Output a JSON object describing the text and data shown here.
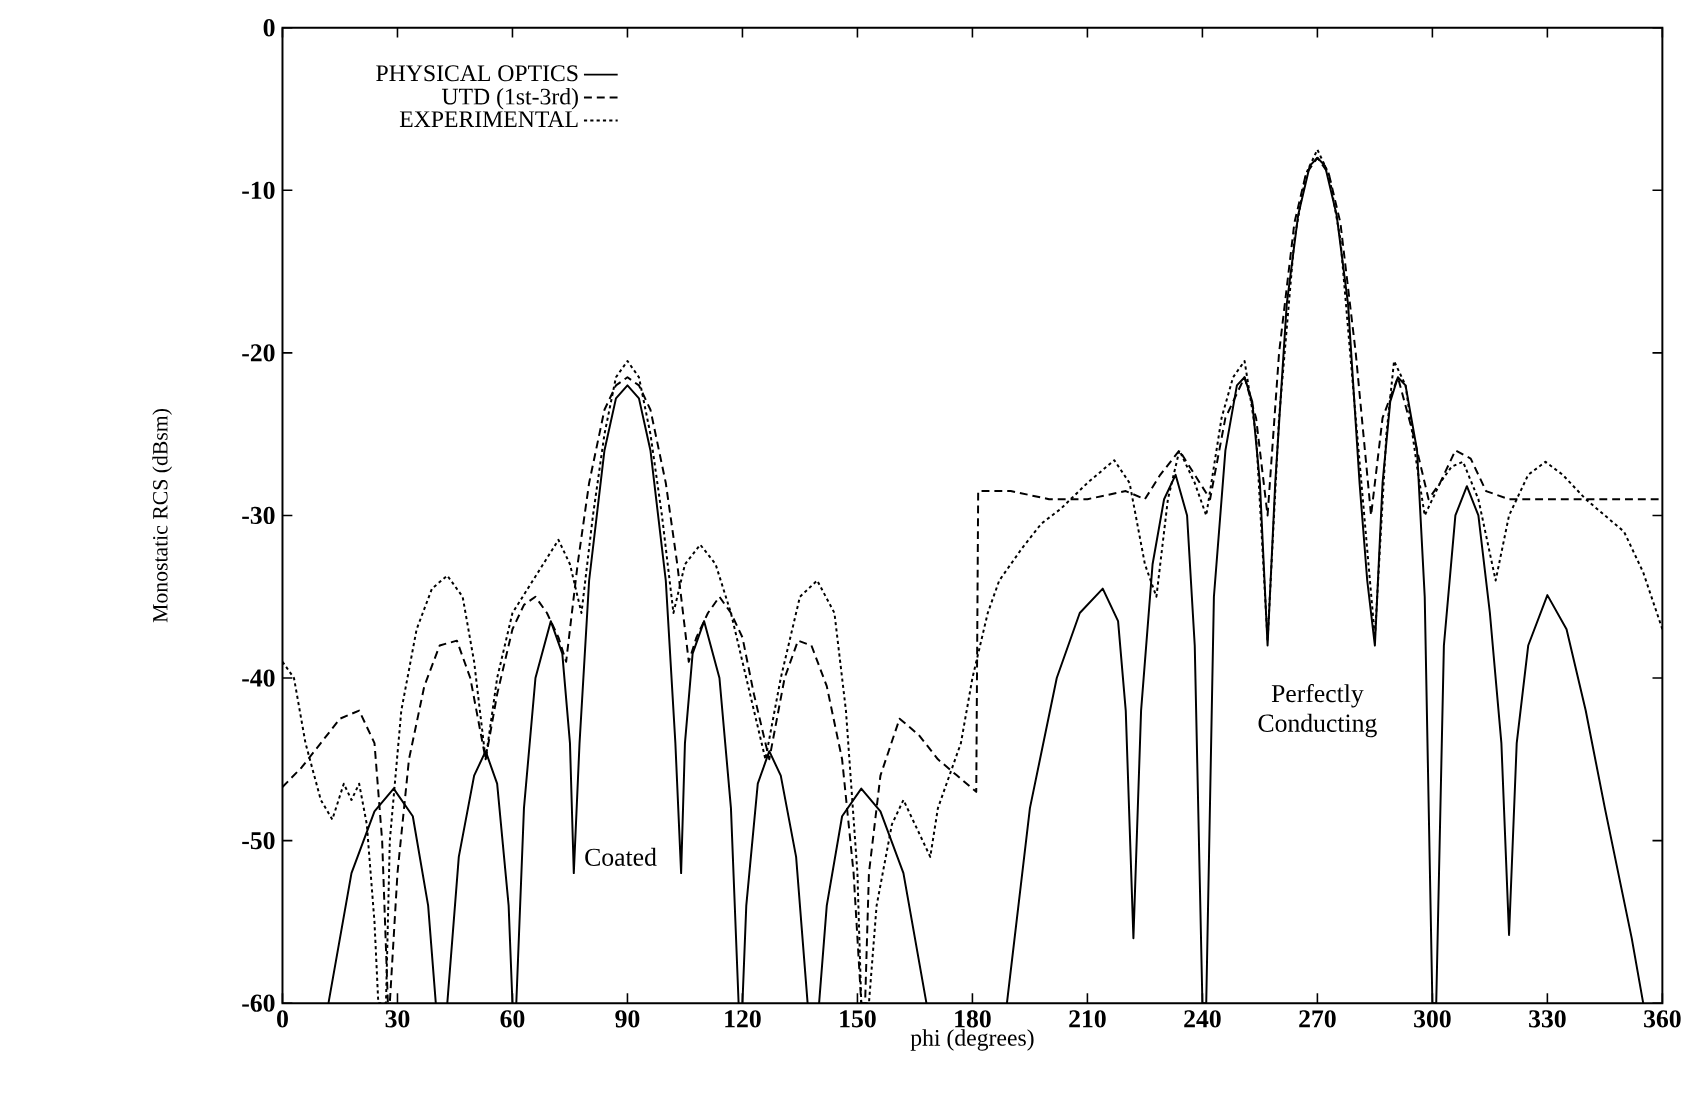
{
  "chart_data": {
    "type": "line",
    "xlabel": "phi (degrees)",
    "ylabel": "Monostatic RCS (dBsm)",
    "xlim": [
      0,
      360
    ],
    "ylim": [
      -60,
      0
    ],
    "xticks": [
      0,
      30,
      60,
      90,
      120,
      150,
      180,
      210,
      240,
      270,
      300,
      330,
      360
    ],
    "yticks": [
      -60,
      -50,
      -40,
      -30,
      -20,
      -10,
      0
    ],
    "legend": "top left",
    "series": [
      {
        "name": "PHYSICAL OPTICS",
        "color": "#000000",
        "line_style": "solid",
        "x": [
          12,
          18,
          24,
          29,
          34,
          38,
          40,
          41.5,
          43,
          46,
          50,
          53,
          56,
          59,
          60,
          60.5,
          61,
          63,
          66,
          70,
          73,
          75,
          76,
          77.5,
          80,
          84,
          87,
          90,
          93,
          96,
          100,
          102.5,
          104,
          105,
          107,
          110,
          114,
          117,
          119,
          119.5,
          120,
          121,
          124,
          127,
          130,
          134,
          137,
          138.5,
          140,
          142,
          146,
          151,
          156,
          162,
          168,
          178,
          189,
          195,
          202,
          208,
          214,
          218,
          220,
          222,
          224,
          227,
          230,
          233,
          236,
          238,
          240,
          241,
          243,
          246,
          249,
          251,
          253,
          255,
          257,
          259,
          262,
          265,
          268,
          270,
          272,
          275,
          278,
          281,
          283,
          285,
          287,
          289,
          291,
          293,
          296,
          298,
          300,
          301,
          303,
          306,
          309,
          312,
          315,
          318,
          320,
          322,
          325,
          330,
          335,
          340,
          345,
          352,
          355
        ],
        "values": [
          -60,
          -52,
          -48.2,
          -46.8,
          -48.5,
          -54,
          -60,
          null,
          -60,
          -51,
          -46,
          -44.5,
          -46.5,
          -54,
          -60,
          null,
          -60,
          -48,
          -40,
          -36.5,
          -38.5,
          -44,
          -52,
          -44,
          -34,
          -26,
          -22.8,
          -22,
          -22.8,
          -26,
          -34,
          -44,
          -52,
          -44,
          -38.5,
          -36.5,
          -40,
          -48,
          -60,
          null,
          -60,
          -54,
          -46.5,
          -44.5,
          -46,
          -51,
          -60,
          null,
          -60,
          -54,
          -48.5,
          -46.8,
          -48.2,
          -52,
          -60,
          null,
          -60,
          -48,
          -40,
          -36,
          -34.5,
          -36.5,
          -42,
          -56,
          -42,
          -33,
          -29,
          -27.5,
          -30,
          -38,
          -60,
          -60,
          -35,
          -26,
          -22,
          -21.5,
          -23,
          -28,
          -38,
          -28,
          -17,
          -11.5,
          -8.5,
          -8,
          -8.5,
          -11.5,
          -17,
          -28,
          -34,
          -38,
          -28,
          -23,
          -21.5,
          -22,
          -26,
          -35,
          -60,
          -60,
          -38,
          -30,
          -28.2,
          -30,
          -36,
          -44,
          -55.8,
          -44,
          -38,
          -34.9,
          -37,
          -42,
          -48,
          -56,
          -60
        ]
      },
      {
        "name": "UTD (1st-3rd)",
        "color": "#000000",
        "line_style": "dashed",
        "x": [
          0,
          5,
          10,
          15,
          20,
          24,
          26,
          27.5,
          28,
          30,
          33,
          37,
          41,
          45.5,
          49,
          53,
          56,
          60,
          63,
          66,
          69,
          72,
          74,
          77,
          80,
          84,
          87,
          90,
          93,
          96,
          100,
          103,
          106,
          108,
          111,
          114,
          117,
          120,
          123,
          127,
          131,
          134.5,
          138,
          142,
          146,
          149,
          151,
          152,
          153,
          156,
          161,
          166,
          171,
          176,
          181,
          181.5,
          190,
          200,
          210,
          220,
          225,
          229,
          234,
          238,
          242,
          246,
          251,
          254,
          257,
          260,
          264,
          267,
          270,
          273,
          276,
          280,
          284,
          287,
          291,
          295,
          299,
          302,
          306,
          310,
          314,
          320,
          330,
          340,
          350,
          360
        ],
        "values": [
          -46.7,
          -45.5,
          -44,
          -42.5,
          -42,
          -44,
          -50,
          -60,
          -60,
          -52,
          -45,
          -40.5,
          -38,
          -37.7,
          -40,
          -45,
          -41,
          -37,
          -35.5,
          -35,
          -36,
          -37.5,
          -39,
          -33,
          -28,
          -23.5,
          -22,
          -21.5,
          -22,
          -23.5,
          -28,
          -33,
          -39,
          -37.5,
          -36,
          -35,
          -36,
          -37.5,
          -41,
          -45,
          -40,
          -37.7,
          -38,
          -40.5,
          -45,
          -52,
          -60,
          -60,
          -52,
          -46,
          -42.5,
          -43.5,
          -45,
          -46,
          -47,
          -28.5,
          -28.5,
          -29,
          -29,
          -28.5,
          -29,
          -27.5,
          -26,
          -27.5,
          -29,
          -24,
          -21.5,
          -24,
          -30,
          -20,
          -12,
          -9,
          -8,
          -9,
          -12,
          -20,
          -30,
          -24,
          -21.5,
          -25,
          -29,
          -28,
          -26,
          -26.5,
          -28.5,
          -29,
          -29,
          -29,
          -29,
          -29
        ]
      },
      {
        "name": "EXPERIMENTAL",
        "color": "#000000",
        "line_style": "dotted",
        "x": [
          0,
          3,
          6,
          10,
          13,
          16,
          18,
          20,
          22,
          24,
          25,
          26,
          27,
          28,
          31,
          35,
          39,
          43,
          47,
          50,
          53,
          56,
          60,
          64,
          68,
          72,
          75,
          78,
          81,
          84,
          87,
          90,
          93,
          96,
          99,
          102,
          105,
          109,
          113,
          117,
          121,
          126,
          130,
          135,
          139.5,
          144,
          147,
          150,
          151,
          153,
          155,
          159,
          162,
          165,
          169,
          171,
          174,
          177,
          180,
          184,
          187,
          193,
          198,
          203,
          210,
          217,
          221,
          225,
          228,
          231,
          234,
          238,
          241,
          245,
          248,
          251,
          254,
          257,
          260,
          264,
          267,
          270,
          273,
          276,
          280,
          285,
          288,
          290,
          293,
          296,
          298,
          302,
          305,
          308,
          312,
          316.5,
          320,
          325,
          329.5,
          334,
          340,
          345,
          350,
          355,
          360
        ],
        "values": [
          -39,
          -40,
          -44,
          -47.5,
          -48.7,
          -46.5,
          -47.5,
          -46.5,
          -49,
          -55,
          -60,
          -60,
          -60,
          -50,
          -42,
          -37,
          -34.5,
          -33.7,
          -35,
          -39,
          -45,
          -40,
          -36,
          -34.5,
          -33,
          -31.5,
          -33,
          -36,
          -30,
          -25,
          -21.5,
          -20.5,
          -21.5,
          -25,
          -30,
          -36,
          -33,
          -31.8,
          -33,
          -36,
          -40,
          -45,
          -40,
          -35,
          -34,
          -36,
          -42,
          -52,
          -60,
          -60,
          -54,
          -49,
          -47.5,
          -49,
          -51,
          -48,
          -46,
          -44,
          -40,
          -36,
          -34,
          -32,
          -30.5,
          -29.6,
          -28,
          -26.6,
          -28,
          -33,
          -35,
          -29,
          -26,
          -28,
          -30,
          -24,
          -21.5,
          -20.5,
          -25,
          -37.7,
          -24,
          -13,
          -9,
          -7.5,
          -9,
          -13,
          -24,
          -37.5,
          -25,
          -20.5,
          -22,
          -27,
          -30,
          -28,
          -27,
          -26.7,
          -29,
          -34,
          -30,
          -27.5,
          -26.7,
          -27.5,
          -29,
          -30,
          -31,
          -33.5,
          -37
        ]
      }
    ],
    "annotations": [
      "Coated",
      "Perfectly Conducting"
    ]
  }
}
